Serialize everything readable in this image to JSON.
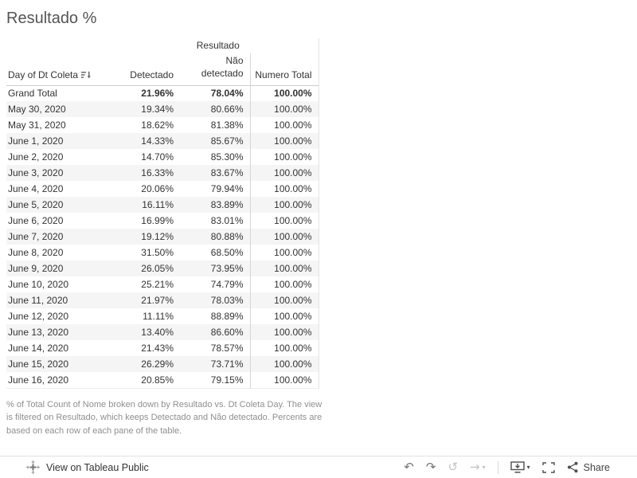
{
  "chart_data": {
    "type": "table",
    "title": "Resultado %",
    "column_group_label": "Resultado",
    "columns": [
      "Day of Dt Coleta",
      "Detectado",
      "Não detectado",
      "Numero Total"
    ],
    "rows": [
      [
        "Grand Total",
        "21.96%",
        "78.04%",
        "100.00%"
      ],
      [
        "May 30, 2020",
        "19.34%",
        "80.66%",
        "100.00%"
      ],
      [
        "May 31, 2020",
        "18.62%",
        "81.38%",
        "100.00%"
      ],
      [
        "June 1, 2020",
        "14.33%",
        "85.67%",
        "100.00%"
      ],
      [
        "June 2, 2020",
        "14.70%",
        "85.30%",
        "100.00%"
      ],
      [
        "June 3, 2020",
        "16.33%",
        "83.67%",
        "100.00%"
      ],
      [
        "June 4, 2020",
        "20.06%",
        "79.94%",
        "100.00%"
      ],
      [
        "June 5, 2020",
        "16.11%",
        "83.89%",
        "100.00%"
      ],
      [
        "June 6, 2020",
        "16.99%",
        "83.01%",
        "100.00%"
      ],
      [
        "June 7, 2020",
        "19.12%",
        "80.88%",
        "100.00%"
      ],
      [
        "June 8, 2020",
        "31.50%",
        "68.50%",
        "100.00%"
      ],
      [
        "June 9, 2020",
        "26.05%",
        "73.95%",
        "100.00%"
      ],
      [
        "June 10, 2020",
        "25.21%",
        "74.79%",
        "100.00%"
      ],
      [
        "June 11, 2020",
        "21.97%",
        "78.03%",
        "100.00%"
      ],
      [
        "June 12, 2020",
        "11.11%",
        "88.89%",
        "100.00%"
      ],
      [
        "June 13, 2020",
        "13.40%",
        "86.60%",
        "100.00%"
      ],
      [
        "June 14, 2020",
        "21.43%",
        "78.57%",
        "100.00%"
      ],
      [
        "June 15, 2020",
        "26.29%",
        "73.71%",
        "100.00%"
      ],
      [
        "June 16, 2020",
        "20.85%",
        "79.15%",
        "100.00%"
      ]
    ]
  },
  "caption": "% of Total Count of Nome broken down by Resultado vs. Dt Coleta Day. The view is filtered on Resultado, which keeps Detectado and Não detectado. Percents are based on each row of each pane of the table.",
  "toolbar": {
    "view_on_label": "View on Tableau Public",
    "share_label": "Share",
    "icons": {
      "undo": "↶",
      "redo": "↷",
      "replay": "↺",
      "forward": "→",
      "caret_down": "▾"
    }
  },
  "colors": {
    "row_band": "#f5f5f5",
    "grid_line": "#cfcfcf",
    "title_text": "#545454",
    "body_text": "#333333",
    "caption_text": "#8f8f8f",
    "icon_enabled": "#4f4f4f",
    "icon_disabled": "#c3c3c3"
  }
}
